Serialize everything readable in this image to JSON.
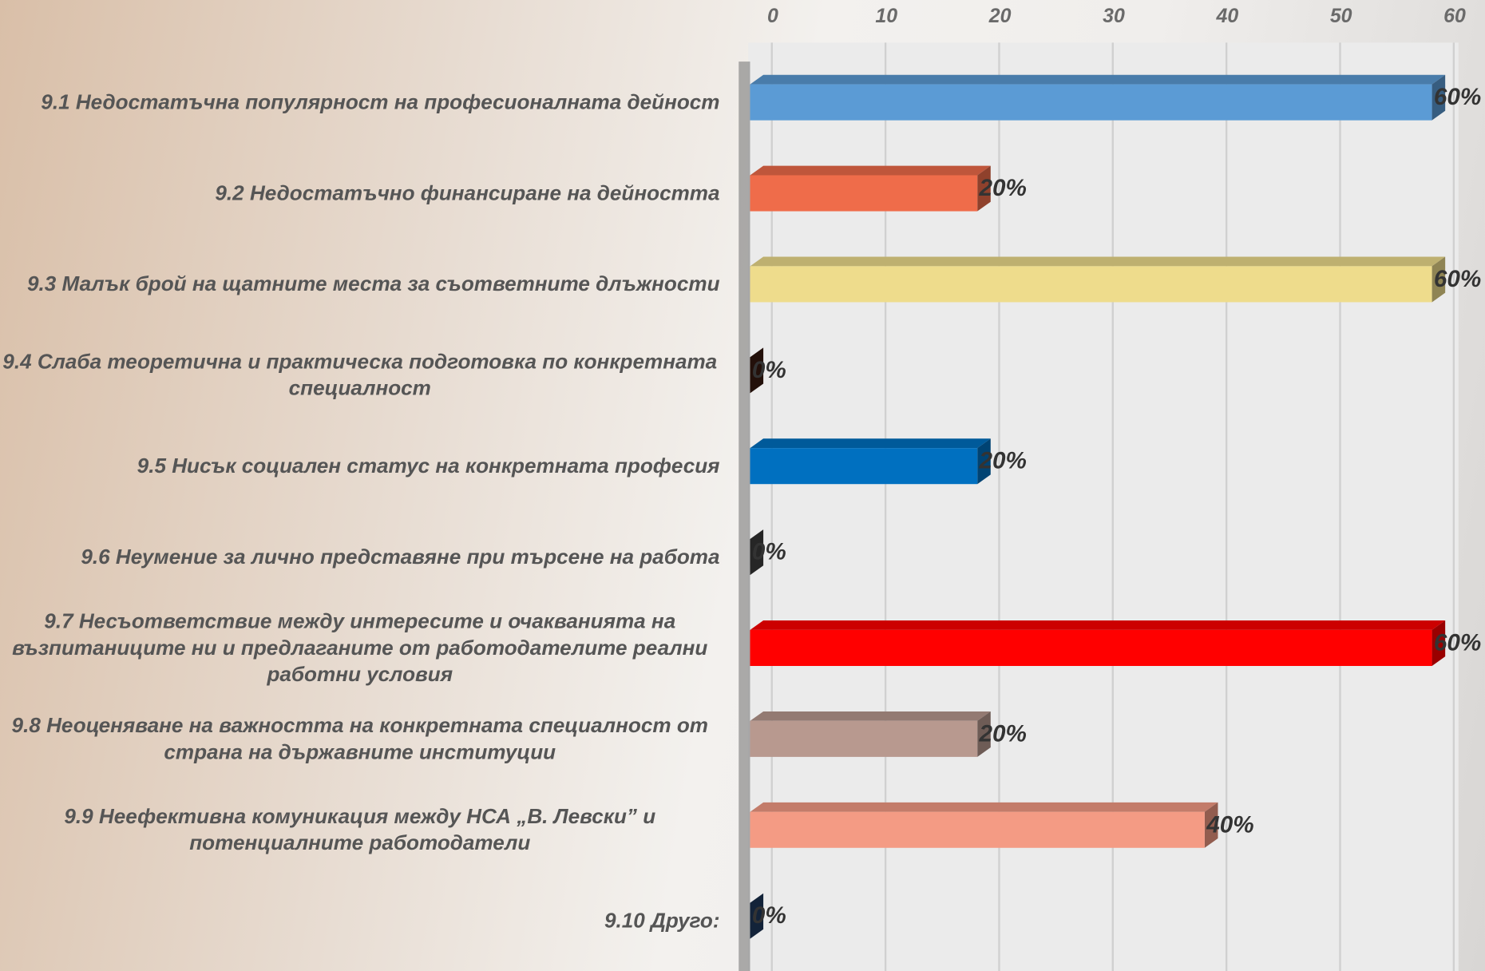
{
  "chart_data": {
    "type": "bar",
    "orientation": "horizontal",
    "categories": [
      "9.1 Недостатъчна популярност на професионалната дейност",
      "9.2 Недостатъчно финансиране на дейността",
      "9.3 Малък брой на щатните места за съответните длъжности",
      "9.4 Слаба теоретична и практическа подготовка по конкретната специалност",
      "9.5 Нисък социален статус на конкретната професия",
      "9.6 Неумение за лично представяне при търсене на работа",
      "9.7 Несъответствие между интересите и очакванията на възпитаниците ни и предлаганите от работодателите реални работни условия",
      "9.8 Неоценяване на важността на конкретната специалност от страна на държавните институции",
      "9.9 Неефективна комуникация между НСА „В. Левски” и потенциалните работодатели",
      "9.10 Друго:"
    ],
    "values": [
      60,
      20,
      60,
      0,
      20,
      0,
      60,
      20,
      40,
      0
    ],
    "value_labels": [
      "60%",
      "20%",
      "60%",
      "0%",
      "20%",
      "0%",
      "60%",
      "20%",
      "40%",
      "0%"
    ],
    "colors": [
      "#5b9bd5",
      "#ef6c4a",
      "#eedc8c",
      "#3a1a10",
      "#0070c0",
      "#404040",
      "#ff0000",
      "#b8998f",
      "#f49b84",
      "#1f3a5f"
    ],
    "xlim": [
      0,
      60
    ],
    "xticks": [
      0,
      10,
      20,
      30,
      40,
      50,
      60
    ],
    "grid": true
  }
}
